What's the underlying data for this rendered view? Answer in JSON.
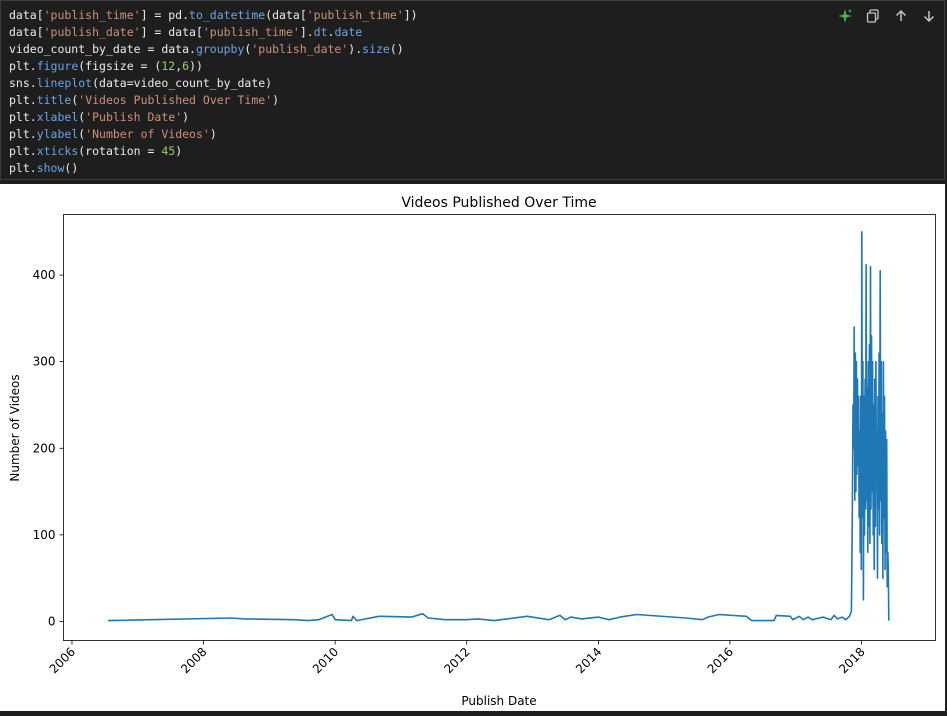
{
  "code": {
    "lines": [
      [
        [
          "plain",
          "data["
        ],
        [
          "str",
          "'publish_time'"
        ],
        [
          "plain",
          "] = pd."
        ],
        [
          "attr",
          "to_datetime"
        ],
        [
          "plain",
          "(data["
        ],
        [
          "str",
          "'publish_time'"
        ],
        [
          "plain",
          "])"
        ]
      ],
      [
        [
          "plain",
          "data["
        ],
        [
          "str",
          "'publish_date'"
        ],
        [
          "plain",
          "] = data["
        ],
        [
          "str",
          "'publish_time'"
        ],
        [
          "plain",
          "]."
        ],
        [
          "attr",
          "dt"
        ],
        [
          "plain",
          "."
        ],
        [
          "attr",
          "date"
        ]
      ],
      [
        [
          "plain",
          "video_count_by_date = data."
        ],
        [
          "attr",
          "groupby"
        ],
        [
          "plain",
          "("
        ],
        [
          "str",
          "'publish_date'"
        ],
        [
          "plain",
          ")."
        ],
        [
          "attr",
          "size"
        ],
        [
          "plain",
          "()"
        ]
      ],
      [
        [
          "plain",
          "plt."
        ],
        [
          "attr",
          "figure"
        ],
        [
          "plain",
          "(figsize = ("
        ],
        [
          "num",
          "12"
        ],
        [
          "plain",
          ","
        ],
        [
          "num",
          "6"
        ],
        [
          "plain",
          "))"
        ]
      ],
      [
        [
          "plain",
          "sns."
        ],
        [
          "attr",
          "lineplot"
        ],
        [
          "plain",
          "(data=video_count_by_date)"
        ]
      ],
      [
        [
          "plain",
          "plt."
        ],
        [
          "attr",
          "title"
        ],
        [
          "plain",
          "("
        ],
        [
          "str",
          "'Videos Published Over Time'"
        ],
        [
          "plain",
          ")"
        ]
      ],
      [
        [
          "plain",
          "plt."
        ],
        [
          "attr",
          "xlabel"
        ],
        [
          "plain",
          "("
        ],
        [
          "str",
          "'Publish Date'"
        ],
        [
          "plain",
          ")"
        ]
      ],
      [
        [
          "plain",
          "plt."
        ],
        [
          "attr",
          "ylabel"
        ],
        [
          "plain",
          "("
        ],
        [
          "str",
          "'Number of Videos'"
        ],
        [
          "plain",
          ")"
        ]
      ],
      [
        [
          "plain",
          "plt."
        ],
        [
          "attr",
          "xticks"
        ],
        [
          "plain",
          "(rotation = "
        ],
        [
          "num",
          "45"
        ],
        [
          "plain",
          ")"
        ]
      ],
      [
        [
          "plain",
          "plt."
        ],
        [
          "attr",
          "show"
        ],
        [
          "plain",
          "()"
        ]
      ]
    ]
  },
  "toolbar": {
    "icons": [
      "sparkle-icon",
      "copy-icon",
      "arrow-up-icon",
      "arrow-down-icon"
    ]
  },
  "colors": {
    "line": "#1f77b4",
    "sparkle": "#3fb950"
  },
  "chart_data": {
    "type": "line",
    "title": "Videos Published Over Time",
    "xlabel": "Publish Date",
    "ylabel": "Number of Videos",
    "xlim": [
      "2005-11-15",
      "2019-02-15"
    ],
    "ylim": [
      -22,
      470
    ],
    "xticks": [
      "2006",
      "2008",
      "2010",
      "2012",
      "2014",
      "2016",
      "2018"
    ],
    "yticks": [
      0,
      100,
      200,
      300,
      400
    ],
    "grid": false,
    "series": [
      {
        "points": [
          [
            "2006-07-20",
            1
          ],
          [
            "2008-06-01",
            4
          ],
          [
            "2008-08-15",
            3
          ],
          [
            "2009-05-20",
            2
          ],
          [
            "2009-08-01",
            1
          ],
          [
            "2009-10-01",
            2
          ],
          [
            "2009-12-15",
            8
          ],
          [
            "2010-01-01",
            2
          ],
          [
            "2010-04-01",
            1
          ],
          [
            "2010-04-10",
            6
          ],
          [
            "2010-05-01",
            1
          ],
          [
            "2010-09-01",
            6
          ],
          [
            "2011-03-01",
            5
          ],
          [
            "2011-05-01",
            9
          ],
          [
            "2011-06-01",
            4
          ],
          [
            "2011-09-01",
            2
          ],
          [
            "2012-01-01",
            2
          ],
          [
            "2012-03-01",
            3
          ],
          [
            "2012-06-01",
            1
          ],
          [
            "2012-12-01",
            6
          ],
          [
            "2013-04-01",
            2
          ],
          [
            "2013-06-01",
            7
          ],
          [
            "2013-07-01",
            2
          ],
          [
            "2013-08-01",
            5
          ],
          [
            "2013-10-01",
            3
          ],
          [
            "2014-01-01",
            5
          ],
          [
            "2014-03-01",
            2
          ],
          [
            "2014-05-01",
            5
          ],
          [
            "2014-08-01",
            8
          ],
          [
            "2015-05-01",
            4
          ],
          [
            "2015-08-01",
            2
          ],
          [
            "2015-09-01",
            5
          ],
          [
            "2015-11-01",
            8
          ],
          [
            "2016-04-01",
            6
          ],
          [
            "2016-05-01",
            1
          ],
          [
            "2016-08-01",
            1
          ],
          [
            "2016-09-01",
            1
          ],
          [
            "2016-09-15",
            7
          ],
          [
            "2016-12-01",
            6
          ],
          [
            "2016-12-15",
            2
          ],
          [
            "2017-01-20",
            6
          ],
          [
            "2017-02-10",
            2
          ],
          [
            "2017-03-10",
            5
          ],
          [
            "2017-04-01",
            2
          ],
          [
            "2017-06-01",
            5
          ],
          [
            "2017-07-15",
            2
          ],
          [
            "2017-08-01",
            7
          ],
          [
            "2017-08-20",
            3
          ],
          [
            "2017-09-15",
            5
          ],
          [
            "2017-10-05",
            2
          ],
          [
            "2017-10-25",
            6
          ],
          [
            "2017-11-05",
            12
          ],
          [
            "2017-11-10",
            120
          ],
          [
            "2017-11-14",
            250
          ],
          [
            "2017-11-18",
            200
          ],
          [
            "2017-11-21",
            340
          ],
          [
            "2017-11-24",
            140
          ],
          [
            "2017-11-27",
            310
          ],
          [
            "2017-11-30",
            150
          ],
          [
            "2017-12-03",
            300
          ],
          [
            "2017-12-06",
            170
          ],
          [
            "2017-12-09",
            280
          ],
          [
            "2017-12-12",
            180
          ],
          [
            "2017-12-15",
            260
          ],
          [
            "2017-12-18",
            120
          ],
          [
            "2017-12-21",
            220
          ],
          [
            "2017-12-24",
            80
          ],
          [
            "2017-12-27",
            260
          ],
          [
            "2017-12-30",
            60
          ],
          [
            "2018-01-02",
            450
          ],
          [
            "2018-01-05",
            120
          ],
          [
            "2018-01-08",
            300
          ],
          [
            "2018-01-11",
            25
          ],
          [
            "2018-01-14",
            260
          ],
          [
            "2018-01-17",
            100
          ],
          [
            "2018-01-20",
            280
          ],
          [
            "2018-01-23",
            130
          ],
          [
            "2018-01-26",
            412
          ],
          [
            "2018-01-29",
            140
          ],
          [
            "2018-02-01",
            270
          ],
          [
            "2018-02-04",
            80
          ],
          [
            "2018-02-07",
            300
          ],
          [
            "2018-02-10",
            110
          ],
          [
            "2018-02-13",
            320
          ],
          [
            "2018-02-16",
            90
          ],
          [
            "2018-02-19",
            410
          ],
          [
            "2018-02-22",
            130
          ],
          [
            "2018-02-25",
            330
          ],
          [
            "2018-02-28",
            150
          ],
          [
            "2018-03-03",
            300
          ],
          [
            "2018-03-06",
            100
          ],
          [
            "2018-03-09",
            250
          ],
          [
            "2018-03-12",
            60
          ],
          [
            "2018-03-15",
            280
          ],
          [
            "2018-03-18",
            110
          ],
          [
            "2018-03-21",
            300
          ],
          [
            "2018-03-24",
            160
          ],
          [
            "2018-03-27",
            220
          ],
          [
            "2018-03-30",
            50
          ],
          [
            "2018-04-02",
            260
          ],
          [
            "2018-04-05",
            130
          ],
          [
            "2018-04-08",
            310
          ],
          [
            "2018-04-11",
            100
          ],
          [
            "2018-04-14",
            405
          ],
          [
            "2018-04-17",
            140
          ],
          [
            "2018-04-20",
            300
          ],
          [
            "2018-04-23",
            90
          ],
          [
            "2018-04-26",
            240
          ],
          [
            "2018-04-29",
            50
          ],
          [
            "2018-05-02",
            300
          ],
          [
            "2018-05-05",
            120
          ],
          [
            "2018-05-08",
            260
          ],
          [
            "2018-05-11",
            60
          ],
          [
            "2018-05-14",
            220
          ],
          [
            "2018-05-17",
            80
          ],
          [
            "2018-05-20",
            210
          ],
          [
            "2018-05-23",
            40
          ],
          [
            "2018-05-26",
            80
          ],
          [
            "2018-05-29",
            60
          ],
          [
            "2018-06-01",
            1
          ]
        ]
      }
    ]
  }
}
